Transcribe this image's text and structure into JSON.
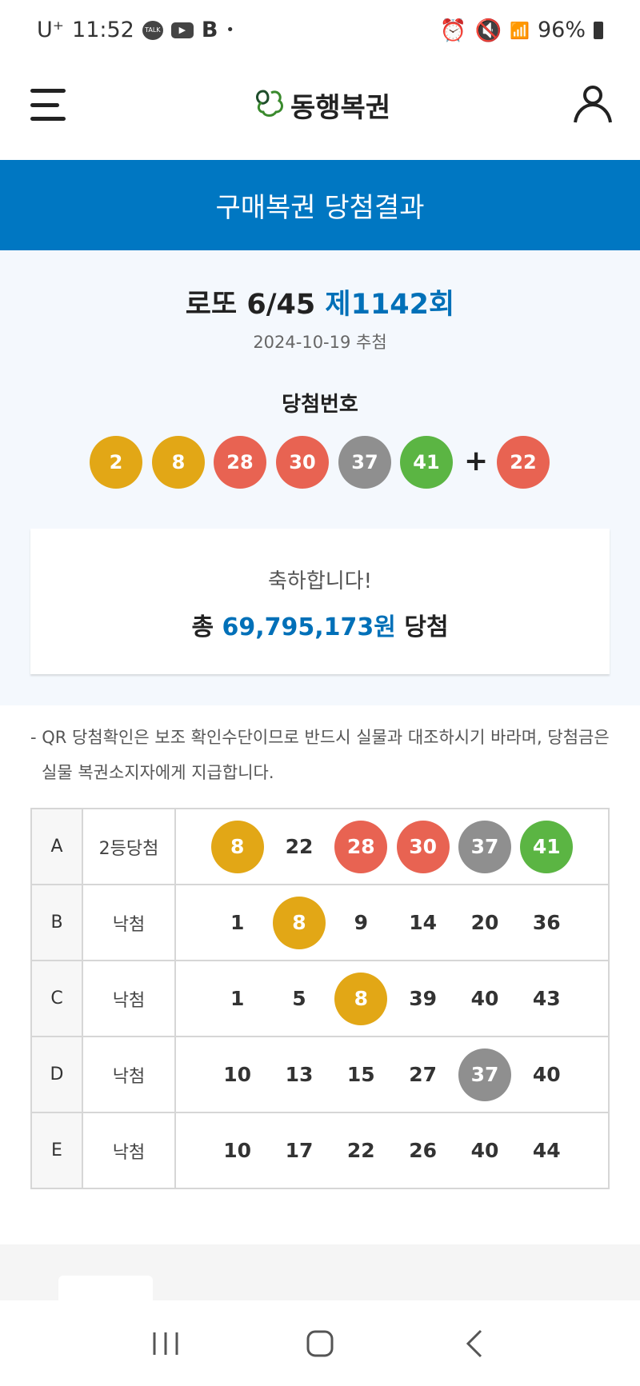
{
  "status_bar": {
    "carrier": "U⁺",
    "time": "11:52",
    "notif_b": "B",
    "battery": "96%"
  },
  "header": {
    "logo_text": "동행복권"
  },
  "banner": {
    "title": "구매복권 당첨결과"
  },
  "result": {
    "game": "로또 6/45",
    "round": "제1142회",
    "date": "2024-10-19 추첨",
    "winning_label": "당첨번호",
    "numbers": [
      {
        "n": "2",
        "color": "#e2a716"
      },
      {
        "n": "8",
        "color": "#e2a716"
      },
      {
        "n": "28",
        "color": "#e86352"
      },
      {
        "n": "30",
        "color": "#e86352"
      },
      {
        "n": "37",
        "color": "#8f8f8f"
      },
      {
        "n": "41",
        "color": "#5bb543"
      }
    ],
    "plus": "+",
    "bonus": {
      "n": "22",
      "color": "#e86352"
    },
    "congrats": "축하합니다!",
    "total_prefix": "총",
    "total_amount": "69,795,173원",
    "total_suffix": "당첨"
  },
  "note": "- QR 당첨확인은 보조 확인수단이므로 반드시 실물과 대조하시기 바라며, 당첨금은 실물 복권소지자에게 지급합니다.",
  "tickets": [
    {
      "key": "A",
      "status": "2등당첨",
      "nums": [
        {
          "n": "8",
          "hit": "#e2a716"
        },
        {
          "n": "22"
        },
        {
          "n": "28",
          "hit": "#e86352"
        },
        {
          "n": "30",
          "hit": "#e86352"
        },
        {
          "n": "37",
          "hit": "#8f8f8f"
        },
        {
          "n": "41",
          "hit": "#5bb543"
        }
      ]
    },
    {
      "key": "B",
      "status": "낙첨",
      "nums": [
        {
          "n": "1"
        },
        {
          "n": "8",
          "hit": "#e2a716"
        },
        {
          "n": "9"
        },
        {
          "n": "14"
        },
        {
          "n": "20"
        },
        {
          "n": "36"
        }
      ]
    },
    {
      "key": "C",
      "status": "낙첨",
      "nums": [
        {
          "n": "1"
        },
        {
          "n": "5"
        },
        {
          "n": "8",
          "hit": "#e2a716"
        },
        {
          "n": "39"
        },
        {
          "n": "40"
        },
        {
          "n": "43"
        }
      ]
    },
    {
      "key": "D",
      "status": "낙첨",
      "nums": [
        {
          "n": "10"
        },
        {
          "n": "13"
        },
        {
          "n": "15"
        },
        {
          "n": "27"
        },
        {
          "n": "37",
          "hit": "#8f8f8f"
        },
        {
          "n": "40"
        }
      ]
    },
    {
      "key": "E",
      "status": "낙첨",
      "nums": [
        {
          "n": "10"
        },
        {
          "n": "17"
        },
        {
          "n": "22"
        },
        {
          "n": "26"
        },
        {
          "n": "40"
        },
        {
          "n": "44"
        }
      ]
    }
  ],
  "colors": {
    "brand_blue": "#0077c2",
    "accent_text": "#0070b8"
  }
}
